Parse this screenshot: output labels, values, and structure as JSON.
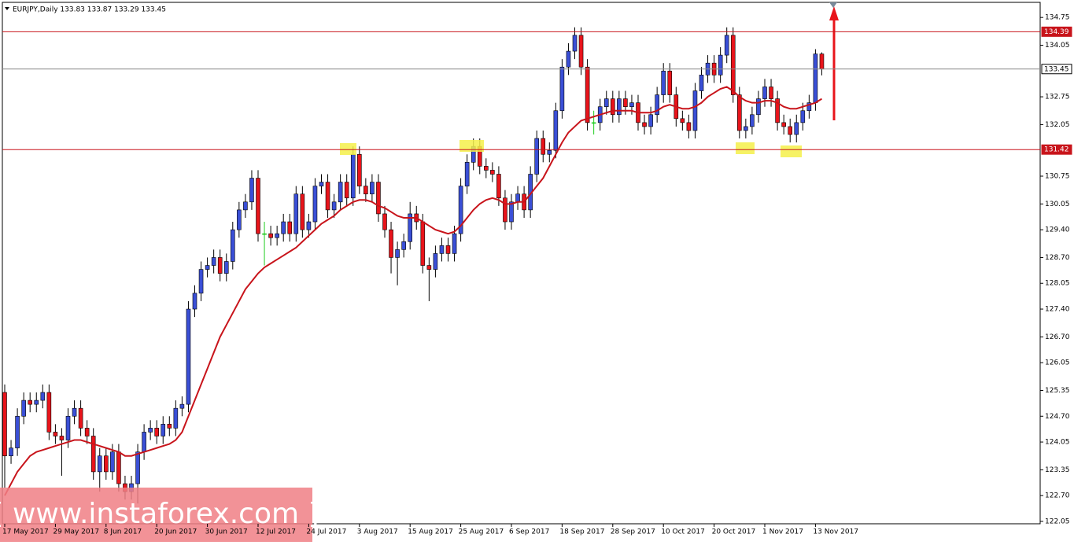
{
  "chart_data": {
    "type": "candlestick",
    "title": "EURJPY,Daily  133.83 133.87 133.29 133.45",
    "watermark": "[ www.instaforex.com ]",
    "categories": [
      "17 May 2017",
      null,
      null,
      null,
      null,
      null,
      null,
      null,
      "29 May 2017",
      null,
      null,
      null,
      null,
      null,
      null,
      null,
      "8 Jun 2017",
      null,
      null,
      null,
      null,
      null,
      null,
      null,
      "20 Jun 2017",
      null,
      null,
      null,
      null,
      null,
      null,
      null,
      "30 Jun 2017",
      null,
      null,
      null,
      null,
      null,
      null,
      null,
      "12 Jul 2017",
      null,
      null,
      null,
      null,
      null,
      null,
      null,
      "24 Jul 2017",
      null,
      null,
      null,
      null,
      null,
      null,
      null,
      "3 Aug 2017",
      null,
      null,
      null,
      null,
      null,
      null,
      null,
      "15 Aug 2017",
      null,
      null,
      null,
      null,
      null,
      null,
      null,
      "25 Aug 2017",
      null,
      null,
      null,
      null,
      null,
      null,
      null,
      "6 Sep 2017",
      null,
      null,
      null,
      null,
      null,
      null,
      null,
      "18 Sep 2017",
      null,
      null,
      null,
      null,
      null,
      null,
      null,
      "28 Sep 2017",
      null,
      null,
      null,
      null,
      null,
      null,
      null,
      "10 Oct 2017",
      null,
      null,
      null,
      null,
      null,
      null,
      null,
      "20 Oct 2017",
      null,
      null,
      null,
      null,
      null,
      null,
      null,
      "1 Nov 2017",
      null,
      null,
      null,
      null,
      null,
      null,
      null,
      "13 Nov 2017",
      null
    ],
    "open": [
      125.3,
      123.7,
      123.9,
      124.7,
      125.1,
      125.0,
      125.1,
      125.3,
      124.3,
      124.2,
      124.1,
      124.7,
      124.9,
      124.4,
      124.2,
      123.3,
      123.7,
      123.3,
      123.8,
      123.0,
      122.8,
      123.0,
      123.8,
      124.3,
      124.4,
      124.2,
      124.5,
      124.4,
      124.9,
      125.0,
      127.4,
      127.8,
      128.4,
      128.5,
      128.7,
      128.3,
      128.6,
      129.4,
      129.9,
      130.1,
      130.7,
      129.3,
      129.3,
      129.2,
      129.3,
      129.6,
      129.3,
      130.3,
      129.4,
      129.6,
      130.5,
      130.6,
      129.9,
      130.1,
      130.6,
      130.2,
      131.3,
      130.5,
      130.3,
      130.6,
      129.8,
      129.4,
      128.7,
      128.9,
      129.1,
      129.8,
      129.6,
      128.5,
      128.4,
      128.8,
      129.0,
      128.8,
      129.3,
      130.5,
      131.1,
      131.5,
      131.0,
      130.9,
      130.8,
      130.2,
      129.6,
      130.1,
      130.3,
      129.9,
      130.8,
      131.7,
      131.3,
      131.4,
      132.4,
      133.5,
      133.9,
      134.3,
      133.5,
      132.1,
      132.1,
      132.5,
      132.7,
      132.3,
      132.7,
      132.5,
      132.6,
      132.1,
      132.0,
      132.3,
      132.8,
      133.4,
      132.8,
      132.2,
      132.1,
      131.9,
      132.9,
      133.3,
      133.6,
      133.3,
      133.8,
      134.3,
      132.8,
      131.9,
      132.0,
      132.3,
      132.7,
      133.0,
      132.7,
      132.1,
      132.0,
      131.8,
      132.1,
      132.4,
      132.6,
      133.83
    ],
    "high": [
      125.5,
      124.1,
      124.9,
      125.3,
      125.3,
      125.3,
      125.5,
      125.5,
      124.5,
      124.4,
      124.9,
      125.1,
      125.1,
      124.6,
      124.4,
      123.9,
      123.9,
      124.0,
      124.0,
      123.2,
      123.2,
      124.0,
      124.5,
      124.6,
      124.6,
      124.7,
      124.7,
      125.1,
      125.2,
      127.6,
      128.0,
      128.6,
      128.7,
      128.9,
      128.9,
      128.8,
      129.6,
      130.1,
      130.3,
      130.9,
      130.9,
      129.6,
      129.5,
      129.5,
      129.8,
      129.8,
      130.5,
      130.5,
      129.8,
      130.7,
      130.8,
      130.8,
      130.3,
      130.8,
      130.8,
      131.5,
      131.5,
      130.7,
      130.8,
      130.8,
      130.0,
      129.6,
      129.1,
      129.3,
      130.1,
      130.0,
      129.8,
      128.7,
      129.0,
      129.2,
      129.2,
      129.5,
      130.7,
      131.3,
      131.7,
      131.7,
      131.2,
      131.1,
      131.0,
      130.4,
      130.3,
      130.5,
      130.5,
      131.0,
      131.9,
      131.9,
      131.6,
      132.6,
      133.7,
      134.1,
      134.5,
      134.5,
      133.7,
      132.4,
      132.7,
      132.9,
      132.9,
      132.9,
      132.9,
      132.8,
      132.8,
      132.3,
      132.5,
      133.0,
      133.6,
      133.6,
      133.0,
      132.4,
      132.3,
      133.1,
      133.5,
      133.8,
      133.8,
      134.0,
      134.5,
      134.5,
      133.0,
      132.2,
      132.5,
      132.9,
      133.2,
      133.2,
      132.9,
      132.3,
      132.2,
      132.3,
      132.6,
      132.8,
      133.95,
      133.87
    ],
    "low": [
      122.9,
      123.5,
      123.7,
      124.5,
      124.8,
      124.8,
      124.9,
      124.1,
      124.0,
      123.2,
      123.9,
      124.5,
      124.2,
      124.0,
      123.1,
      122.8,
      123.1,
      123.1,
      122.8,
      122.6,
      122.6,
      122.5,
      123.6,
      124.1,
      124.0,
      124.0,
      124.2,
      124.2,
      124.7,
      124.8,
      127.2,
      127.6,
      128.2,
      128.3,
      128.1,
      128.1,
      128.4,
      129.2,
      129.7,
      129.9,
      129.1,
      128.5,
      129.0,
      129.0,
      129.1,
      129.1,
      129.1,
      129.2,
      129.2,
      129.4,
      130.3,
      129.7,
      129.7,
      129.9,
      130.0,
      130.0,
      130.3,
      130.1,
      130.1,
      129.6,
      129.2,
      128.3,
      128.0,
      128.7,
      128.9,
      129.4,
      128.3,
      127.6,
      128.2,
      128.6,
      128.6,
      128.6,
      129.1,
      130.3,
      130.9,
      130.8,
      130.7,
      130.6,
      130.0,
      129.4,
      129.4,
      129.9,
      129.7,
      129.7,
      130.6,
      131.1,
      131.1,
      131.2,
      132.2,
      133.3,
      133.7,
      133.3,
      131.9,
      131.8,
      131.9,
      132.3,
      132.1,
      132.1,
      132.3,
      132.3,
      131.9,
      131.8,
      131.8,
      132.1,
      132.6,
      132.6,
      132.0,
      131.9,
      131.7,
      131.7,
      132.7,
      133.1,
      133.1,
      133.1,
      133.6,
      132.6,
      131.7,
      131.7,
      131.8,
      132.1,
      132.5,
      132.5,
      131.9,
      131.8,
      131.6,
      131.6,
      131.9,
      132.2,
      132.4,
      133.29
    ],
    "close": [
      123.7,
      123.9,
      124.7,
      125.1,
      125.0,
      125.1,
      125.3,
      124.3,
      124.2,
      124.1,
      124.7,
      124.9,
      124.4,
      124.2,
      123.3,
      123.7,
      123.3,
      123.8,
      123.0,
      122.8,
      123.0,
      123.8,
      124.3,
      124.4,
      124.2,
      124.5,
      124.4,
      124.9,
      125.0,
      127.4,
      127.8,
      128.4,
      128.5,
      128.7,
      128.3,
      128.6,
      129.4,
      129.9,
      130.1,
      130.7,
      129.3,
      129.3,
      129.2,
      129.3,
      129.6,
      129.3,
      130.3,
      129.4,
      129.6,
      130.5,
      130.6,
      129.9,
      130.1,
      130.6,
      130.2,
      131.3,
      130.5,
      130.3,
      130.6,
      129.8,
      129.4,
      128.7,
      128.9,
      129.1,
      129.8,
      129.6,
      128.5,
      128.4,
      128.8,
      129.0,
      128.8,
      129.3,
      130.5,
      131.1,
      131.5,
      131.0,
      130.9,
      130.8,
      130.2,
      129.6,
      130.1,
      130.3,
      129.9,
      130.8,
      131.7,
      131.3,
      131.4,
      132.4,
      133.5,
      133.9,
      134.3,
      133.5,
      132.1,
      132.1,
      132.5,
      132.7,
      132.3,
      132.7,
      132.5,
      132.6,
      132.1,
      132.0,
      132.3,
      132.8,
      133.4,
      132.8,
      132.2,
      132.1,
      131.9,
      132.9,
      133.3,
      133.6,
      133.3,
      133.8,
      134.3,
      132.8,
      131.9,
      132.0,
      132.3,
      132.7,
      133.0,
      132.7,
      132.1,
      132.0,
      131.8,
      132.1,
      132.4,
      132.6,
      133.83,
      133.45
    ],
    "up_color": "#3a4fd6",
    "down_color": "#e8141b",
    "doji_color": "#1fcc1f",
    "ma": {
      "color": "#c8141b",
      "values": [
        122.7,
        123.0,
        123.3,
        123.5,
        123.7,
        123.8,
        123.85,
        123.9,
        123.95,
        124.0,
        124.05,
        124.1,
        124.1,
        124.05,
        124.0,
        123.95,
        123.9,
        123.85,
        123.8,
        123.7,
        123.7,
        123.75,
        123.8,
        123.85,
        123.9,
        123.95,
        124.0,
        124.1,
        124.3,
        124.7,
        125.1,
        125.5,
        125.9,
        126.3,
        126.7,
        127.0,
        127.3,
        127.6,
        127.9,
        128.1,
        128.3,
        128.45,
        128.55,
        128.65,
        128.75,
        128.85,
        128.95,
        129.1,
        129.25,
        129.4,
        129.55,
        129.65,
        129.75,
        129.9,
        130.0,
        130.1,
        130.15,
        130.15,
        130.1,
        130.0,
        129.95,
        129.85,
        129.75,
        129.7,
        129.7,
        129.7,
        129.6,
        129.5,
        129.4,
        129.35,
        129.3,
        129.35,
        129.5,
        129.7,
        129.9,
        130.05,
        130.15,
        130.2,
        130.15,
        130.05,
        130.05,
        130.1,
        130.1,
        130.3,
        130.5,
        130.7,
        131.0,
        131.3,
        131.6,
        131.85,
        132.0,
        132.15,
        132.2,
        132.25,
        132.3,
        132.35,
        132.4,
        132.4,
        132.4,
        132.4,
        132.35,
        132.35,
        132.35,
        132.4,
        132.5,
        132.55,
        132.5,
        132.45,
        132.45,
        132.5,
        132.6,
        132.75,
        132.85,
        132.95,
        133.0,
        132.9,
        132.75,
        132.65,
        132.6,
        132.6,
        132.65,
        132.65,
        132.6,
        132.5,
        132.45,
        132.45,
        132.5,
        132.55,
        132.6,
        132.7
      ]
    },
    "levels": [
      {
        "value": 134.39,
        "color": "#c8141b"
      },
      {
        "value": 133.45,
        "color": "#8c8c8c"
      },
      {
        "value": 131.42,
        "color": "#c8141b"
      }
    ],
    "ylim": [
      121.99,
      135.13
    ],
    "yticks": [
      134.75,
      134.05,
      132.75,
      132.05,
      130.75,
      130.05,
      {
        "value": 129.4,
        "label": "129.40"
      },
      {
        "value": 128.7,
        "label": "128.70"
      },
      128.05,
      {
        "value": 127.4,
        "label": "127.40"
      },
      {
        "value": 126.7,
        "label": "126.70"
      },
      126.05,
      125.35,
      {
        "value": 124.7,
        "label": "124.70"
      },
      124.05,
      123.35,
      {
        "value": 122.7,
        "label": "122.70"
      },
      122.05
    ]
  }
}
